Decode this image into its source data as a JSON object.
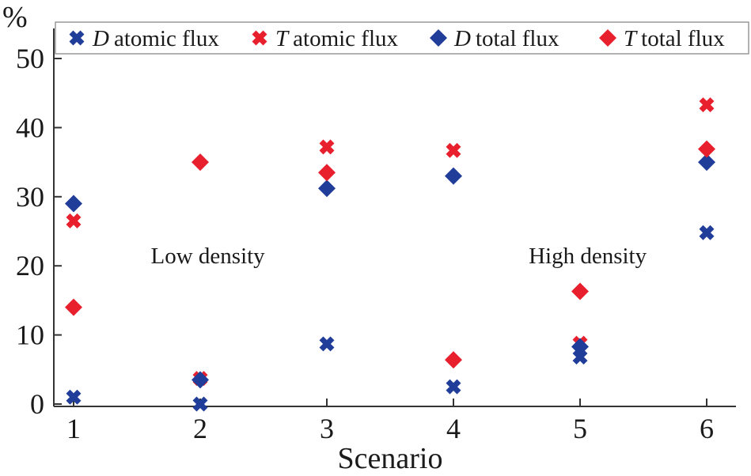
{
  "chart_data": {
    "type": "scatter",
    "title": "",
    "xlabel": "Scenario",
    "ylabel": "%",
    "x": [
      1,
      2,
      3,
      4,
      5,
      6
    ],
    "xticks": [
      "1",
      "2",
      "3",
      "4",
      "5",
      "6"
    ],
    "yticks": [
      "0",
      "10",
      "20",
      "30",
      "40",
      "50"
    ],
    "ylim": [
      0,
      55
    ],
    "grid": false,
    "legend_position": "top",
    "series": [
      {
        "prefix": "D",
        "name": "atomic flux",
        "marker": "x",
        "color": "#1f3d99",
        "values": [
          1,
          0,
          8.7,
          2.5,
          6.8,
          24.8
        ]
      },
      {
        "prefix": "T",
        "name": "atomic flux",
        "marker": "x",
        "color": "#e8202e",
        "values": [
          26.5,
          3.7,
          37.2,
          36.7,
          8.8,
          43.3
        ]
      },
      {
        "prefix": "D",
        "name": "total flux",
        "marker": "diamond",
        "color": "#1f3d99",
        "values": [
          29,
          3.5,
          31.2,
          33,
          8.3,
          35
        ]
      },
      {
        "prefix": "T",
        "name": "total flux",
        "marker": "diamond",
        "color": "#e8202e",
        "values": [
          14,
          35,
          33.5,
          6.4,
          16.3,
          36.9
        ]
      }
    ],
    "annotations": [
      {
        "text": "Low density",
        "x": 2.06,
        "y": 21.5
      },
      {
        "text": "High density",
        "x": 5.06,
        "y": 21.5
      }
    ]
  }
}
